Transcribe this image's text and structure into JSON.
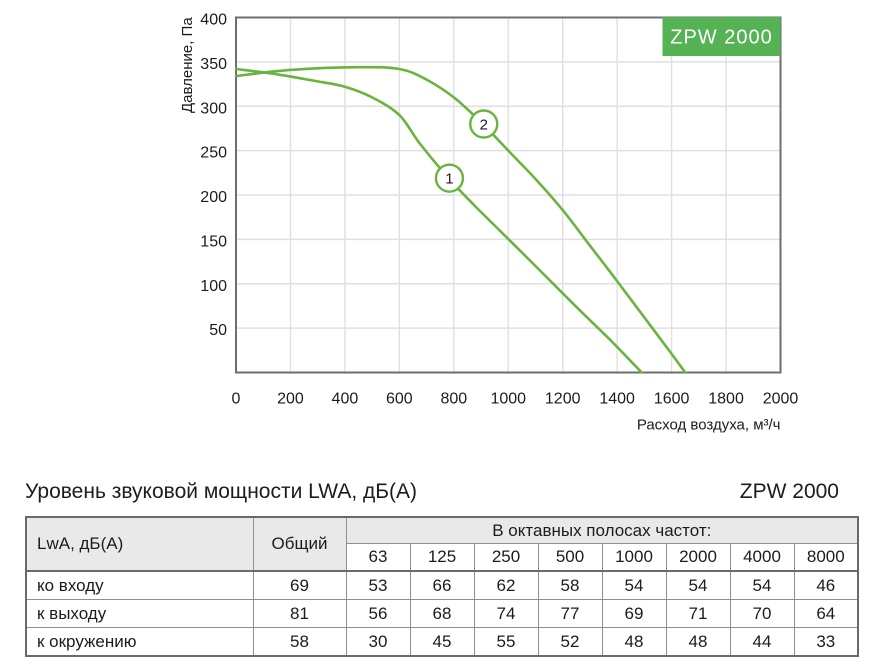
{
  "chart_data": {
    "type": "line",
    "title": "",
    "badge": "ZPW 2000",
    "xlabel": "Расход воздуха, м³/ч",
    "ylabel": "Давление, Па",
    "xlim": [
      0,
      2000
    ],
    "ylim": [
      0,
      400
    ],
    "xticks": [
      0,
      200,
      400,
      600,
      800,
      1000,
      1200,
      1400,
      1600,
      1800,
      2000
    ],
    "yticks": [
      50,
      100,
      150,
      200,
      250,
      300,
      350,
      400
    ],
    "grid": true,
    "legend_position": "none",
    "colors": {
      "curve": "#69b43e",
      "badge_bg": "#56b355",
      "badge_text": "#ffffff",
      "grid": "#e0e0e0",
      "axis": "#6e6e6e",
      "text": "#1c1c1c"
    },
    "series": [
      {
        "name": "1",
        "marker": {
          "x": 784,
          "y": 219
        },
        "points": [
          [
            0,
            342
          ],
          [
            150,
            336
          ],
          [
            300,
            328
          ],
          [
            400,
            322
          ],
          [
            500,
            310
          ],
          [
            600,
            290
          ],
          [
            675,
            258
          ],
          [
            781,
            219
          ],
          [
            870,
            190
          ],
          [
            972,
            159
          ],
          [
            1100,
            120
          ],
          [
            1250,
            74
          ],
          [
            1380,
            35
          ],
          [
            1490,
            0
          ]
        ]
      },
      {
        "name": "2",
        "marker": {
          "x": 910,
          "y": 280
        },
        "points": [
          [
            0,
            334
          ],
          [
            200,
            341
          ],
          [
            450,
            344
          ],
          [
            600,
            342
          ],
          [
            700,
            330
          ],
          [
            800,
            310
          ],
          [
            900,
            282
          ],
          [
            1000,
            250
          ],
          [
            1100,
            218
          ],
          [
            1200,
            183
          ],
          [
            1300,
            143
          ],
          [
            1400,
            103
          ],
          [
            1500,
            62
          ],
          [
            1600,
            21
          ],
          [
            1650,
            0
          ]
        ]
      }
    ]
  },
  "sound_table": {
    "title": "Уровень звуковой мощности LWA, дБ(А)",
    "model": "ZPW 2000",
    "col_header": "LwA, дБ(А)",
    "total_header": "Общий",
    "octave_header": "В октавных полосах частот:",
    "freqs": [
      "63",
      "125",
      "250",
      "500",
      "1000",
      "2000",
      "4000",
      "8000"
    ],
    "rows": [
      {
        "label": "ко входу",
        "total": "69",
        "values": [
          "53",
          "66",
          "62",
          "58",
          "54",
          "54",
          "54",
          "46"
        ]
      },
      {
        "label": "к выходу",
        "total": "81",
        "values": [
          "56",
          "68",
          "74",
          "77",
          "69",
          "71",
          "70",
          "64"
        ]
      },
      {
        "label": "к окружению",
        "total": "58",
        "values": [
          "30",
          "45",
          "55",
          "52",
          "48",
          "48",
          "44",
          "33"
        ]
      }
    ]
  }
}
